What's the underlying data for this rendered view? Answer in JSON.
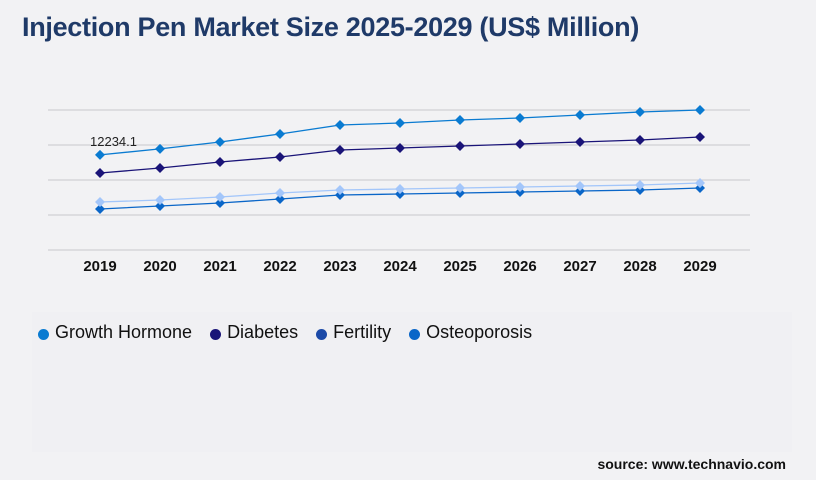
{
  "chart_data": {
    "type": "line",
    "title": "Injection Pen Market Size 2025-2029 (US$ Million)",
    "x": [
      "2019",
      "2020",
      "2021",
      "2022",
      "2023",
      "2024",
      "2025",
      "2026",
      "2027",
      "2028",
      "2029"
    ],
    "ylim": [
      0,
      18000
    ],
    "grid": true,
    "legend_placement": "bottom",
    "annotations": [
      {
        "series": "Growth Hormone",
        "x": "2019",
        "label": "12234.1"
      }
    ],
    "series": [
      {
        "name": "Growth Hormone",
        "color": "#0a7bd1",
        "values": [
          12234.1,
          13000,
          13886,
          14914,
          16071,
          16329,
          16714,
          16971,
          17357,
          17743,
          18000
        ]
      },
      {
        "name": "Diabetes",
        "color": "#1a1478",
        "values": [
          9900,
          10543,
          11314,
          11957,
          12857,
          13114,
          13371,
          13629,
          13886,
          14143,
          14529
        ]
      },
      {
        "name": "Fertility",
        "color": "#a3c6fa",
        "legend_color": "#1c4aa8",
        "values": [
          6171,
          6429,
          6814,
          7329,
          7714,
          7843,
          7971,
          8100,
          8229,
          8357,
          8614
        ]
      },
      {
        "name": "Osteoporosis",
        "color": "#0a66c8",
        "values": [
          5271,
          5657,
          6043,
          6557,
          7071,
          7200,
          7329,
          7457,
          7586,
          7714,
          7971
        ]
      }
    ]
  },
  "source": "source: www.technavio.com"
}
